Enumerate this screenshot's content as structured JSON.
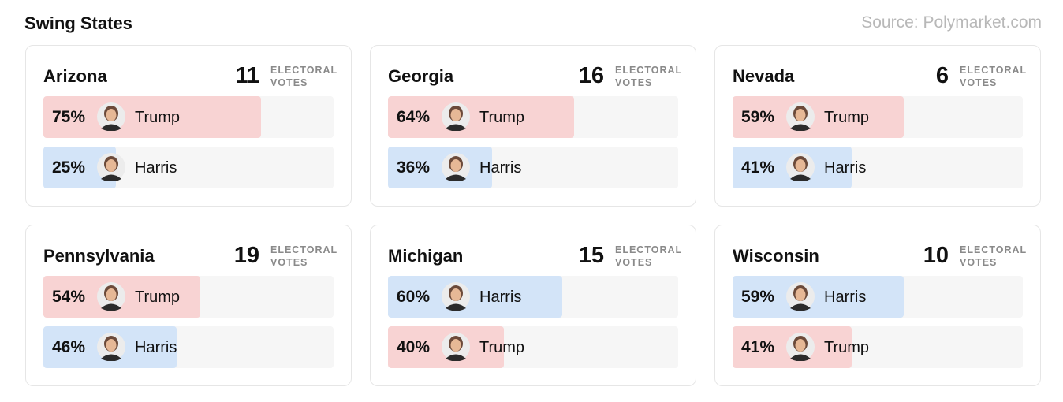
{
  "header": {
    "title": "Swing States",
    "source": "Source: Polymarket.com"
  },
  "states": [
    {
      "name": "Arizona",
      "votes": 11,
      "votes_label": "ELECTORAL VOTES",
      "candidates": [
        {
          "name": "Trump",
          "percent": {
            "value": 75,
            "label": "75%"
          },
          "color": "#f8d3d3"
        },
        {
          "name": "Harris",
          "percent": {
            "value": 25,
            "label": "25%"
          },
          "color": "#d3e4f8"
        }
      ]
    },
    {
      "name": "Georgia",
      "votes": 16,
      "votes_label": "ELECTORAL VOTES",
      "candidates": [
        {
          "name": "Trump",
          "percent": {
            "value": 64,
            "label": "64%"
          },
          "color": "#f8d3d3"
        },
        {
          "name": "Harris",
          "percent": {
            "value": 36,
            "label": "36%"
          },
          "color": "#d3e4f8"
        }
      ]
    },
    {
      "name": "Nevada",
      "votes": 6,
      "votes_label": "ELECTORAL VOTES",
      "candidates": [
        {
          "name": "Trump",
          "percent": {
            "value": 59,
            "label": "59%"
          },
          "color": "#f8d3d3"
        },
        {
          "name": "Harris",
          "percent": {
            "value": 41,
            "label": "41%"
          },
          "color": "#d3e4f8"
        }
      ]
    },
    {
      "name": "Pennsylvania",
      "votes": 19,
      "votes_label": "ELECTORAL VOTES",
      "candidates": [
        {
          "name": "Trump",
          "percent": {
            "value": 54,
            "label": "54%"
          },
          "color": "#f8d3d3"
        },
        {
          "name": "Harris",
          "percent": {
            "value": 46,
            "label": "46%"
          },
          "color": "#d3e4f8"
        }
      ]
    },
    {
      "name": "Michigan",
      "votes": 15,
      "votes_label": "ELECTORAL VOTES",
      "candidates": [
        {
          "name": "Harris",
          "percent": {
            "value": 60,
            "label": "60%"
          },
          "color": "#d3e4f8"
        },
        {
          "name": "Trump",
          "percent": {
            "value": 40,
            "label": "40%"
          },
          "color": "#f8d3d3"
        }
      ]
    },
    {
      "name": "Wisconsin",
      "votes": 10,
      "votes_label": "ELECTORAL VOTES",
      "candidates": [
        {
          "name": "Harris",
          "percent": {
            "value": 59,
            "label": "59%"
          },
          "color": "#d3e4f8"
        },
        {
          "name": "Trump",
          "percent": {
            "value": 41,
            "label": "41%"
          },
          "color": "#f8d3d3"
        }
      ]
    }
  ]
}
